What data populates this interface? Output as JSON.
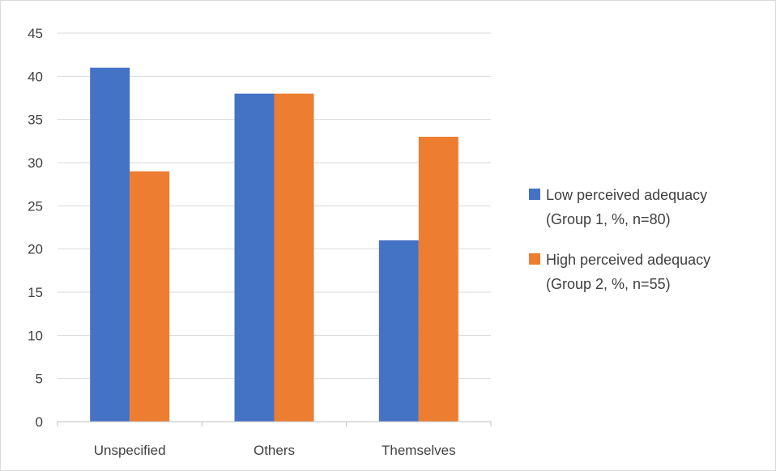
{
  "chart_data": {
    "type": "bar",
    "categories": [
      "Unspecified",
      "Others",
      "Themselves"
    ],
    "series": [
      {
        "name": "Low perceived adequacy (Group 1, %, n=80)",
        "legend_lines": [
          "Low perceived adequacy",
          "(Group 1, %, n=80)"
        ],
        "color": "#4472c4",
        "values": [
          41,
          38,
          21
        ]
      },
      {
        "name": "High perceived adequacy (Group 2, %, n=55)",
        "legend_lines": [
          "High perceived adequacy",
          "(Group 2, %, n=55)"
        ],
        "color": "#ed7d31",
        "values": [
          29,
          38,
          33
        ]
      }
    ],
    "ylim": [
      0,
      45
    ],
    "yticks": [
      "0",
      "5",
      "10",
      "15",
      "20",
      "25",
      "30",
      "35",
      "40",
      "45"
    ],
    "grid": true,
    "legend_position": "right"
  }
}
